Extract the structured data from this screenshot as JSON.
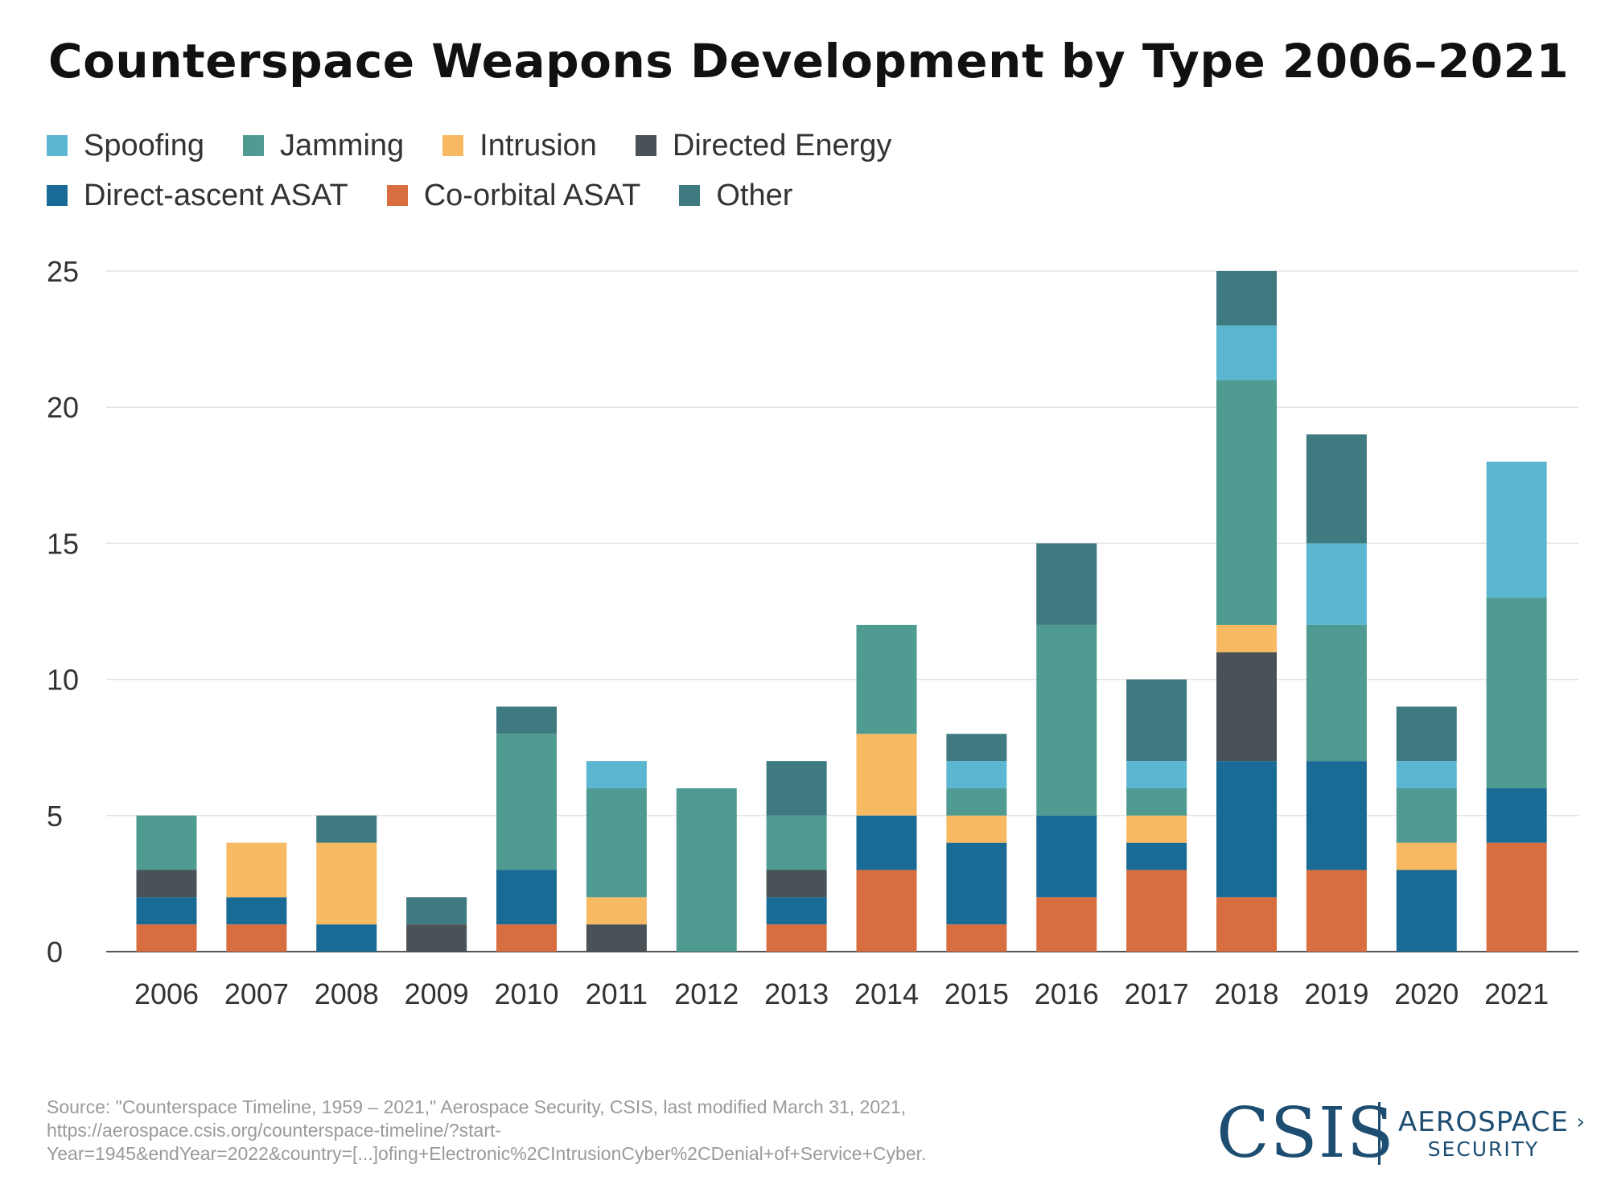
{
  "title": "Counterspace Weapons Development by Type 2006–2021",
  "source": {
    "line1": "Source: \"Counterspace Timeline, 1959 – 2021,\" Aerospace Security, CSIS, last modified March 31, 2021,",
    "line2": "https://aerospace.csis.org/counterspace-timeline/?start-",
    "line3": "Year=1945&endYear=2022&country=[...]ofing+Electronic%2CIntrusionCyber%2CDenial+of+Service+Cyber."
  },
  "logos": {
    "csis": "CSIS",
    "aerospace_line1": "AEROSPACE",
    "aerospace_line2": "SECURITY"
  },
  "chart_data": {
    "type": "bar",
    "stacked": true,
    "title": "Counterspace Weapons Development by Type 2006–2021",
    "xlabel": "",
    "ylabel": "",
    "ylim": [
      0,
      25
    ],
    "yticks": [
      0,
      5,
      10,
      15,
      20,
      25
    ],
    "grid": true,
    "legend_position": "top-left",
    "categories": [
      "2006",
      "2007",
      "2008",
      "2009",
      "2010",
      "2011",
      "2012",
      "2013",
      "2014",
      "2015",
      "2016",
      "2017",
      "2018",
      "2019",
      "2020",
      "2021"
    ],
    "legend_order": [
      "Spoofing",
      "Jamming",
      "Intrusion",
      "Directed Energy",
      "Direct-ascent ASAT",
      "Co-orbital ASAT",
      "Other"
    ],
    "series": [
      {
        "name": "Co-orbital ASAT",
        "color": "#d86d3f",
        "values": [
          1,
          1,
          0,
          0,
          1,
          0,
          0,
          1,
          3,
          1,
          2,
          3,
          2,
          3,
          0,
          4
        ]
      },
      {
        "name": "Direct-ascent ASAT",
        "color": "#1a6a96",
        "values": [
          1,
          1,
          1,
          0,
          2,
          0,
          0,
          1,
          2,
          3,
          3,
          1,
          5,
          4,
          3,
          2
        ]
      },
      {
        "name": "Directed Energy",
        "color": "#4a5157",
        "values": [
          1,
          0,
          0,
          1,
          0,
          1,
          0,
          1,
          0,
          0,
          0,
          0,
          4,
          0,
          0,
          0
        ]
      },
      {
        "name": "Intrusion",
        "color": "#f7ba63",
        "values": [
          0,
          2,
          3,
          0,
          0,
          1,
          0,
          0,
          3,
          1,
          0,
          1,
          1,
          0,
          1,
          0
        ]
      },
      {
        "name": "Jamming",
        "color": "#4f9a91",
        "values": [
          2,
          0,
          0,
          0,
          5,
          4,
          6,
          2,
          4,
          1,
          7,
          1,
          9,
          5,
          2,
          7
        ]
      },
      {
        "name": "Spoofing",
        "color": "#5bb6d1",
        "values": [
          0,
          0,
          0,
          0,
          0,
          1,
          0,
          0,
          0,
          1,
          0,
          1,
          2,
          3,
          1,
          5
        ]
      },
      {
        "name": "Other",
        "color": "#3e7a80",
        "values": [
          0,
          0,
          1,
          1,
          1,
          0,
          0,
          2,
          0,
          1,
          3,
          3,
          2,
          4,
          2,
          0
        ]
      }
    ]
  }
}
